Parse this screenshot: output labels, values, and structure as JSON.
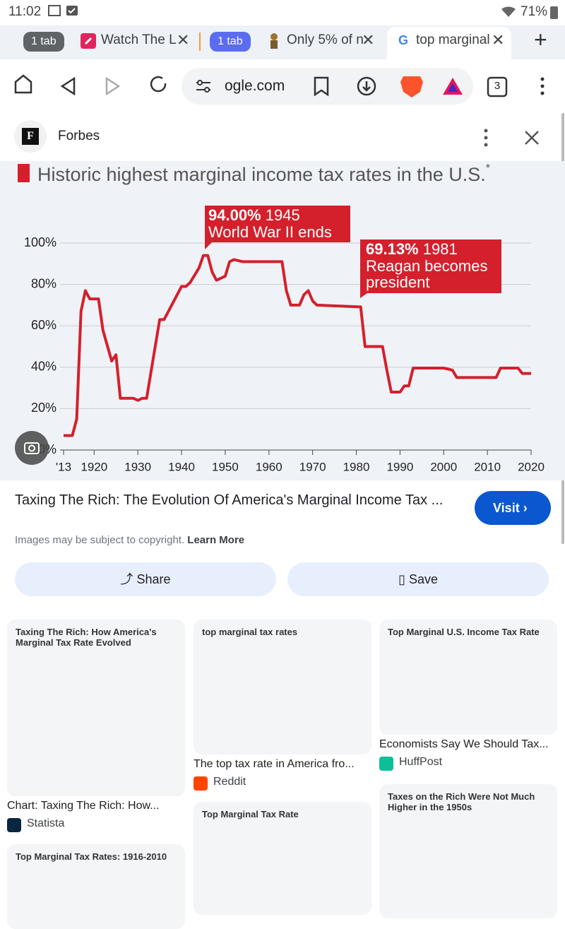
{
  "status_bar": {
    "time": "11:02",
    "battery": "71%"
  },
  "tabs": [
    {
      "group": "1 tab",
      "title": "Watch The L"
    },
    {
      "group": "1 tab",
      "title": "Only 5% of n"
    },
    {
      "title": "top marginal"
    }
  ],
  "toolbar": {
    "url": "ogle.com",
    "tab_count": "3"
  },
  "viewer": {
    "logo": "F",
    "source": "Forbes",
    "caption": "Taxing The Rich: The Evolution Of America's Marginal Income Tax ...",
    "visit": "Visit",
    "copyright": "Images may be subject to copyright.",
    "learn_more": "Learn More",
    "share": "Share",
    "save": "Save"
  },
  "chart_data": {
    "type": "line",
    "title": "Historic highest marginal income tax rates in the U.S.",
    "title_note": "*",
    "x": [
      1913,
      1915,
      1916,
      1917,
      1918,
      1919,
      1921,
      1922,
      1924,
      1925,
      1926,
      1929,
      1930,
      1931,
      1932,
      1935,
      1936,
      1940,
      1941,
      1942,
      1944,
      1945,
      1946,
      1947,
      1948,
      1950,
      1951,
      1952,
      1954,
      1963,
      1964,
      1965,
      1967,
      1968,
      1969,
      1970,
      1971,
      1981,
      1982,
      1986,
      1987,
      1988,
      1990,
      1991,
      1992,
      1993,
      2000,
      2002,
      2003,
      2012,
      2013,
      2017,
      2018,
      2020
    ],
    "values": [
      7,
      7,
      15,
      67,
      77,
      73,
      73,
      58,
      43,
      46,
      25,
      25,
      24,
      25,
      25,
      63,
      63,
      79,
      79,
      81,
      88,
      94,
      94,
      86,
      82,
      84,
      91,
      92,
      91,
      91,
      77,
      70,
      70,
      75,
      77,
      72,
      70,
      69.13,
      50,
      50,
      38.5,
      28,
      28,
      31,
      31,
      39.6,
      39.6,
      38.6,
      35,
      35,
      39.6,
      39.6,
      37,
      37
    ],
    "color": "#d4202c",
    "xlim": [
      1913,
      2020
    ],
    "xticks": [
      {
        "value": 1913,
        "label": "'13"
      },
      1920,
      1930,
      1940,
      1950,
      1960,
      1970,
      1980,
      1990,
      2000,
      2010,
      2020
    ],
    "ylim": [
      0,
      100
    ],
    "yticks": [
      {
        "value": 0,
        "label": "0%"
      },
      {
        "value": 20,
        "label": "20%"
      },
      {
        "value": 40,
        "label": "40%"
      },
      {
        "value": 60,
        "label": "60%"
      },
      {
        "value": 80,
        "label": "80%"
      },
      {
        "value": 100,
        "label": "100%"
      }
    ],
    "grid": true,
    "annotations": [
      {
        "value_label": "94.00%",
        "year": "1945",
        "lines": [
          "World War II ends"
        ]
      },
      {
        "value_label": "69.13%",
        "year": "1981",
        "lines": [
          "Reagan becomes",
          "president"
        ]
      }
    ]
  },
  "results": [
    {
      "image_title": "Taxing The Rich: How America's Marginal Tax Rate Evolved",
      "caption": "Chart: Taxing The Rich: How...",
      "source": "Statista"
    },
    {
      "image_title": "Top Marginal Tax Rates: 1916-2010"
    },
    {
      "image_title": "top marginal tax rates",
      "caption": "The top tax rate in America fro...",
      "source": "Reddit"
    },
    {
      "image_title": "Top Marginal Tax Rate"
    },
    {
      "image_title": "Top Marginal U.S. Income Tax Rate",
      "caption": "Economists Say We Should Tax...",
      "source": "HuffPost"
    },
    {
      "image_title": "Taxes on the Rich Were Not Much Higher in the 1950s"
    }
  ]
}
